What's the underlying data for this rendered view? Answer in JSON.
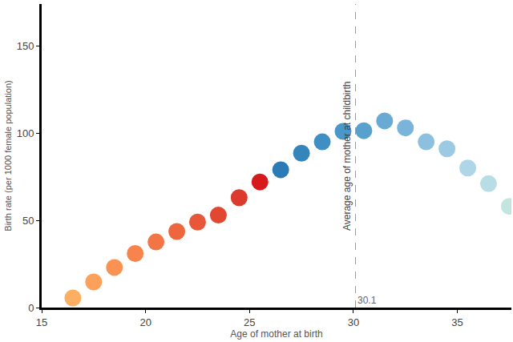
{
  "chart_data": {
    "type": "scatter",
    "x_label": "Age of mother at birth",
    "y_label": "Birth rate (per 1000 female population)",
    "x": [
      16.5,
      17.5,
      18.5,
      19.5,
      20.5,
      21.5,
      22.5,
      23.5,
      24.5,
      25.5,
      26.5,
      27.5,
      28.5,
      29.5,
      30.5,
      31.5,
      32.5,
      33.5,
      34.5,
      35.5,
      36.5,
      37.5
    ],
    "values": [
      5.5,
      14.7,
      23,
      31,
      37.6,
      43.6,
      49,
      53,
      63,
      72,
      79,
      88.5,
      95,
      101,
      101.4,
      107,
      103,
      95,
      91,
      80,
      71,
      58
    ],
    "colors": [
      "#fdae61",
      "#fca05a",
      "#fa9253",
      "#f7844c",
      "#f37545",
      "#ee663e",
      "#e85737",
      "#e24831",
      "#dc3a2c",
      "#d7191c",
      "#2c7bb6",
      "#3585bd",
      "#3f8fc4",
      "#4a97c9",
      "#58a0ce",
      "#68aad3",
      "#7ab5d9",
      "#8cc0de",
      "#9dcae3",
      "#aed5e8",
      "#b9dde5",
      "#c4e5df"
    ],
    "marker": "circle",
    "xlim": [
      15,
      37.6
    ],
    "xticks": [
      15,
      20,
      25,
      30,
      35
    ],
    "ylim": [
      0,
      174
    ],
    "yticks": [
      0,
      50,
      100,
      150
    ],
    "grid": false,
    "vline": {
      "x": 30.1,
      "label": "Average age of mother at childbirth",
      "line_style": "dashed"
    }
  }
}
